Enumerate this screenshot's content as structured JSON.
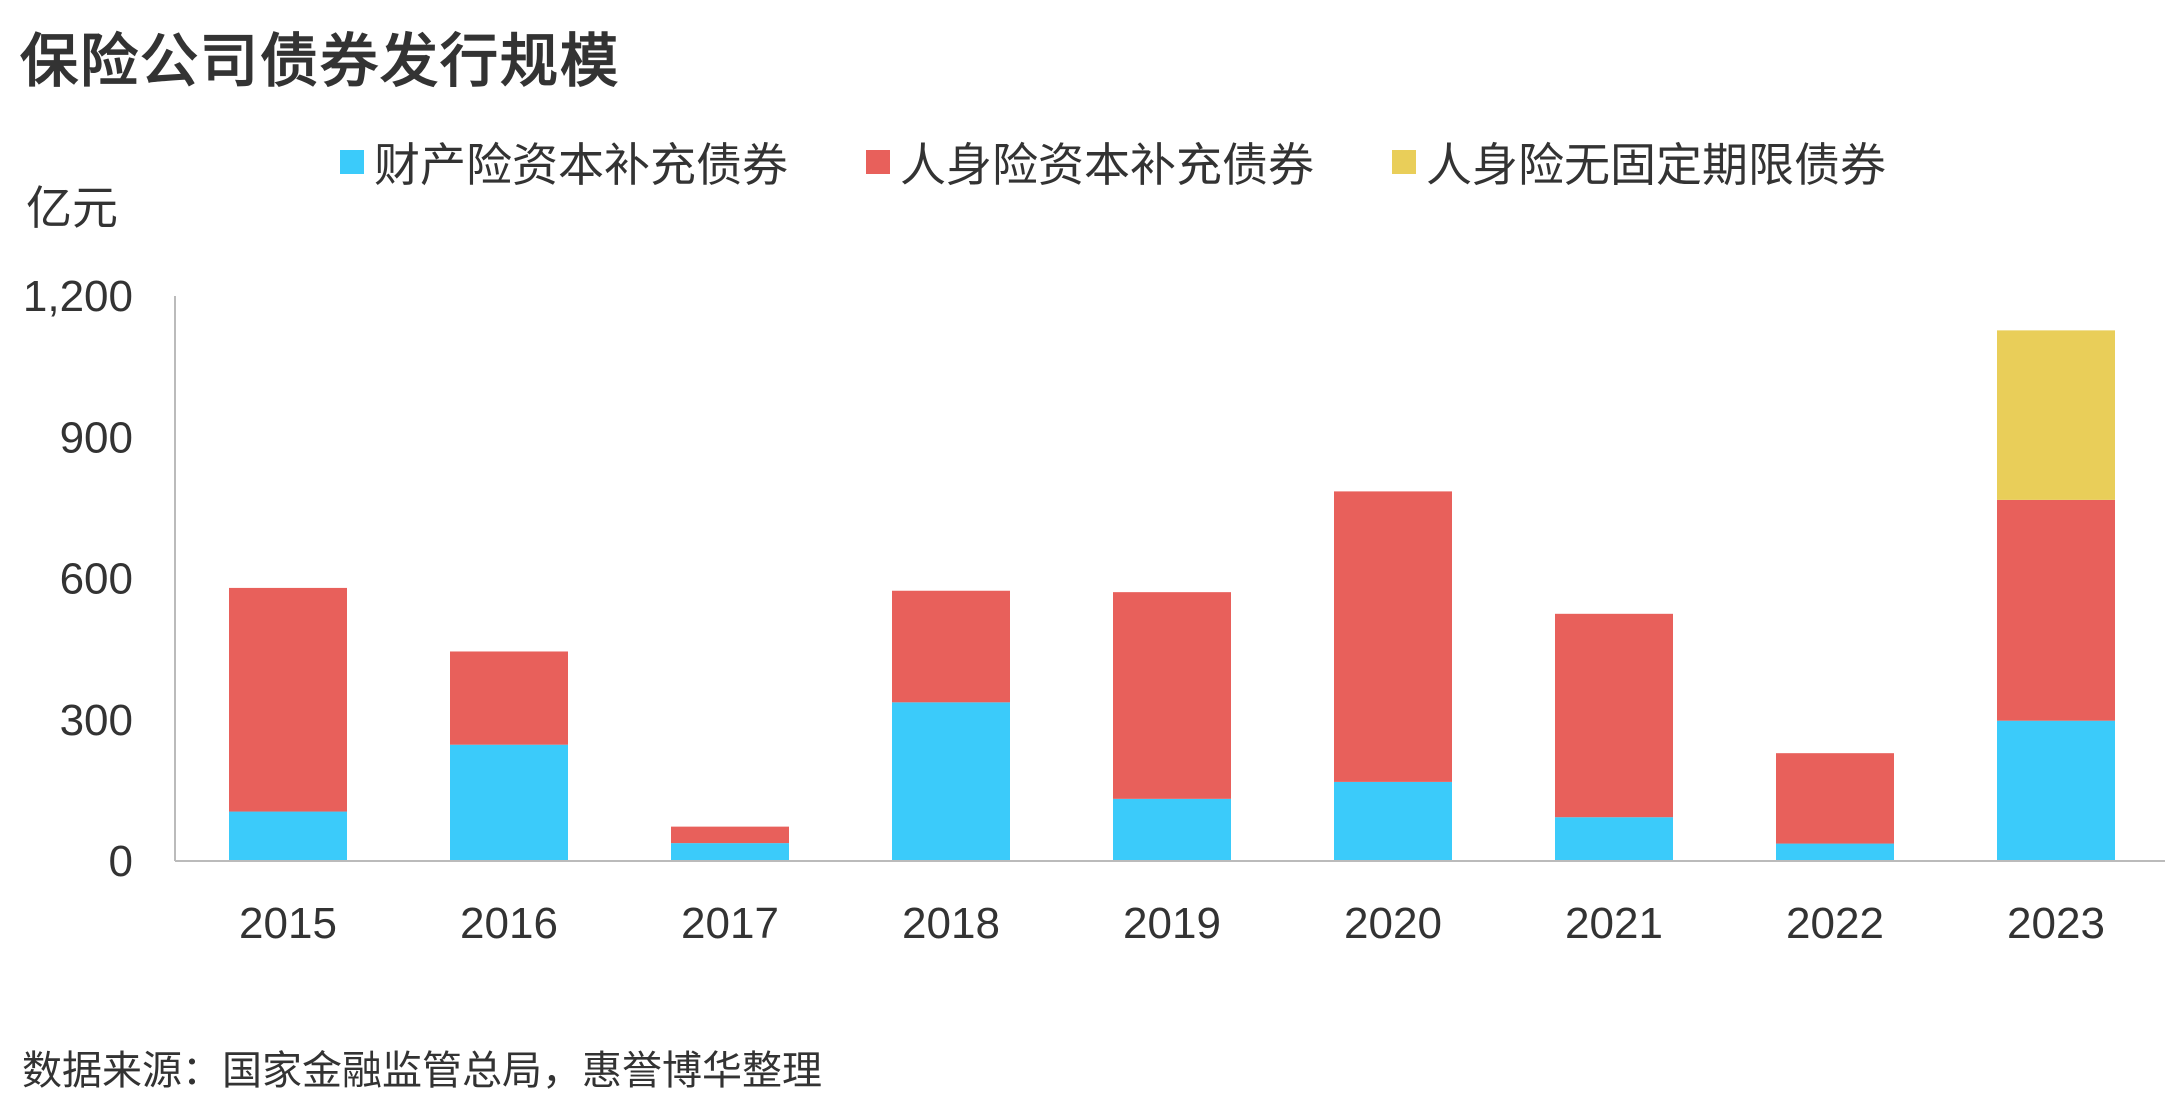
{
  "title": "保险公司债券发行规模",
  "unit_label": "亿元",
  "source": "数据来源：国家金融监管总局，惠誉博华整理",
  "colors": {
    "property_cap": "#3BCBFA",
    "life_cap": "#E8605B",
    "life_perpetual": "#E9CE59",
    "axis": "#BBBBBB",
    "text": "#333333"
  },
  "legend": [
    {
      "name": "财产险资本补充债券",
      "color": "#3BCBFA"
    },
    {
      "name": "人身险资本补充债券",
      "color": "#E8605B"
    },
    {
      "name": "人身险无固定期限债券",
      "color": "#E9CE59"
    }
  ],
  "chart_data": {
    "type": "bar",
    "stacked": true,
    "title": "保险公司债券发行规模",
    "ylabel": "亿元",
    "xlabel": "",
    "categories": [
      "2015",
      "2016",
      "2017",
      "2018",
      "2019",
      "2020",
      "2021",
      "2022",
      "2023"
    ],
    "ylim": [
      0,
      1200
    ],
    "yticks": [
      0,
      300,
      600,
      900,
      1200
    ],
    "ytick_labels": [
      "0",
      "300",
      "600",
      "900",
      "1,200"
    ],
    "grid": false,
    "legend_position": "top",
    "series": [
      {
        "name": "财产险资本补充债券",
        "color": "#3BCBFA",
        "values": [
          105,
          247,
          38,
          337,
          132,
          168,
          93,
          37,
          298
        ]
      },
      {
        "name": "人身险资本补充债券",
        "color": "#E8605B",
        "values": [
          475,
          198,
          35,
          237,
          439,
          617,
          432,
          192,
          469
        ]
      },
      {
        "name": "人身险无固定期限债券",
        "color": "#E9CE59",
        "values": [
          0,
          0,
          0,
          0,
          0,
          0,
          0,
          0,
          360
        ]
      }
    ]
  }
}
